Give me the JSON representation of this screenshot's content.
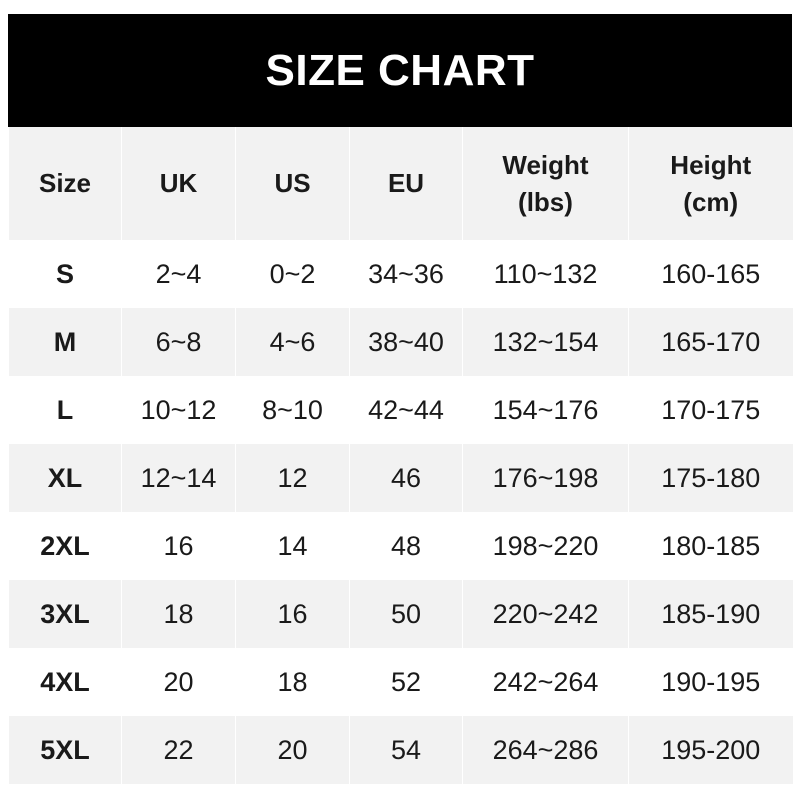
{
  "title": "SIZE CHART",
  "headers": [
    {
      "line1": "Size",
      "line2": ""
    },
    {
      "line1": "UK",
      "line2": ""
    },
    {
      "line1": "US",
      "line2": ""
    },
    {
      "line1": "EU",
      "line2": ""
    },
    {
      "line1": "Weight",
      "line2": "(lbs)"
    },
    {
      "line1": "Height",
      "line2": "(cm)"
    }
  ],
  "rows": [
    [
      "S",
      "2~4",
      "0~2",
      "34~36",
      "110~132",
      "160-165"
    ],
    [
      "M",
      "6~8",
      "4~6",
      "38~40",
      "132~154",
      "165-170"
    ],
    [
      "L",
      "10~12",
      "8~10",
      "42~44",
      "154~176",
      "170-175"
    ],
    [
      "XL",
      "12~14",
      "12",
      "46",
      "176~198",
      "175-180"
    ],
    [
      "2XL",
      "16",
      "14",
      "48",
      "198~220",
      "180-185"
    ],
    [
      "3XL",
      "18",
      "16",
      "50",
      "220~242",
      "185-190"
    ],
    [
      "4XL",
      "20",
      "18",
      "52",
      "242~264",
      "190-195"
    ],
    [
      "5XL",
      "22",
      "20",
      "54",
      "264~286",
      "195-200"
    ]
  ],
  "colors": {
    "header_bg": "#000000",
    "alt_row_bg": "#f2f2f2"
  }
}
